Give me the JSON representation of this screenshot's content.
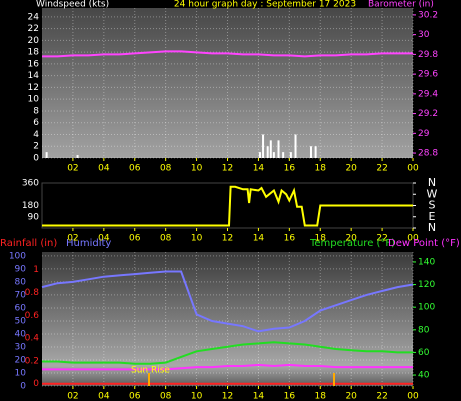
{
  "chart_data": [
    {
      "type": "bar",
      "title": "24 hour graph day : September 17 2023",
      "ylabel": "Windspeed (kts)",
      "y2label": "Barometer (in)",
      "xlim": [
        0,
        24
      ],
      "xticks": [
        {
          "value": 2,
          "label": "02"
        },
        {
          "value": 4,
          "label": "04"
        },
        {
          "value": 6,
          "label": "06"
        },
        {
          "value": 8,
          "label": "08"
        },
        10,
        12,
        14,
        16,
        18,
        20,
        22,
        {
          "value": 24,
          "label": "00"
        }
      ],
      "ylim": [
        0,
        25.5
      ],
      "yticks": [
        0,
        2,
        4,
        6,
        8,
        10,
        12,
        14,
        16,
        18,
        20,
        22,
        24
      ],
      "ycolor": "#ffffff",
      "y2lim": [
        28.75,
        30.27
      ],
      "y2ticks": [
        28.8,
        29,
        29.2,
        29.4,
        29.6,
        29.8,
        30,
        30.2
      ],
      "y2color": "#ff44ff",
      "grid": true,
      "series": [
        {
          "type": "bar",
          "color": "#ffffff",
          "axis": "y",
          "x": [
            0.3,
            2.3,
            14.1,
            14.3,
            14.6,
            14.8,
            15.0,
            15.3,
            15.6,
            16.1,
            16.4,
            17.4,
            17.7
          ],
          "values": [
            1,
            0.5,
            1,
            4,
            2,
            3,
            1,
            3,
            1,
            1,
            4,
            2,
            2
          ]
        },
        {
          "type": "line",
          "color": "#ff44ff",
          "axis": "y2",
          "x": [
            0,
            1,
            2,
            3,
            4,
            5,
            6,
            7,
            8,
            9,
            10,
            11,
            12,
            13,
            14,
            15,
            16,
            17,
            18,
            19,
            20,
            21,
            22,
            23,
            24
          ],
          "values": [
            29.78,
            29.78,
            29.79,
            29.79,
            29.8,
            29.8,
            29.81,
            29.82,
            29.83,
            29.83,
            29.82,
            29.81,
            29.81,
            29.8,
            29.8,
            29.79,
            29.79,
            29.78,
            29.79,
            29.79,
            29.8,
            29.8,
            29.81,
            29.81,
            29.81
          ]
        }
      ]
    },
    {
      "type": "line",
      "xlim": [
        0,
        24
      ],
      "xticks": [
        {
          "value": 2,
          "label": "02"
        },
        {
          "value": 4,
          "label": "04"
        },
        {
          "value": 6,
          "label": "06"
        },
        {
          "value": 8,
          "label": "08"
        },
        10,
        12,
        14,
        16,
        18,
        20,
        22,
        {
          "value": 24,
          "label": "00"
        }
      ],
      "ylim": [
        0,
        360
      ],
      "yticks": [
        90,
        180,
        360
      ],
      "ycolor": "#ffffff",
      "y2lim": [
        0,
        360
      ],
      "y2ticks": [
        {
          "value": 0,
          "label": "N"
        },
        {
          "value": 90,
          "label": "E"
        },
        {
          "value": 180,
          "label": "S"
        },
        {
          "value": 270,
          "label": "W"
        },
        {
          "value": 360,
          "label": "N"
        }
      ],
      "y2color": "#ffffff",
      "grid": false,
      "series": [
        {
          "type": "line",
          "color": "#ffff00",
          "axis": "y",
          "x": [
            0,
            12.1,
            12.2,
            12.5,
            13,
            13.3,
            13.4,
            13.5,
            14,
            14.2,
            14.5,
            15,
            15.3,
            15.5,
            15.8,
            16,
            16.3,
            16.5,
            16.8,
            17,
            17.5,
            17.8,
            18,
            24
          ],
          "values": [
            20,
            20,
            330,
            330,
            310,
            310,
            200,
            310,
            300,
            320,
            250,
            300,
            210,
            300,
            270,
            220,
            300,
            170,
            170,
            20,
            20,
            20,
            180,
            180
          ]
        }
      ]
    },
    {
      "type": "line",
      "annotation": "Sun Rise",
      "xlim": [
        0,
        24
      ],
      "xticks": [
        {
          "value": 2,
          "label": "02"
        },
        {
          "value": 4,
          "label": "04"
        },
        {
          "value": 6,
          "label": "06"
        },
        {
          "value": 8,
          "label": "08"
        },
        10,
        12,
        14,
        16,
        18,
        20,
        22,
        {
          "value": 24,
          "label": "00"
        }
      ],
      "ylim": [
        0,
        103
      ],
      "yticks": [
        0,
        10,
        20,
        30,
        40,
        50,
        60,
        70,
        80,
        90,
        100
      ],
      "ycolor": "#7777ff",
      "y2lim": [
        30.3,
        148.8
      ],
      "y2ticks": [
        40,
        60,
        80,
        100,
        120,
        140
      ],
      "y2color": "#33ff33",
      "y3lim": [
        -0.02,
        1.155
      ],
      "y3ticks": [
        0,
        0.2,
        0.4,
        0.6,
        0.8,
        1
      ],
      "y3color": "#ff2222",
      "grid": true,
      "series": [
        {
          "name": "Rainfall (in)",
          "type": "line",
          "color": "#ff2222",
          "axis": "y3",
          "x": [
            0,
            24
          ],
          "values": [
            0,
            0
          ]
        },
        {
          "name": "Humidity",
          "type": "line",
          "color": "#7777ff",
          "axis": "y",
          "x": [
            0,
            1,
            2,
            3,
            4,
            5,
            6,
            7,
            8,
            9,
            10,
            11,
            12,
            13,
            14,
            15,
            16,
            17,
            18,
            19,
            20,
            21,
            22,
            23,
            24
          ],
          "values": [
            76,
            79,
            80,
            82,
            84,
            85,
            86,
            87,
            88,
            88,
            55,
            50,
            48,
            46,
            42,
            44,
            45,
            50,
            58,
            62,
            66,
            70,
            73,
            76,
            78
          ]
        },
        {
          "name": "Temperature (°F)",
          "type": "line",
          "color": "#22dd22",
          "axis": "y2",
          "x": [
            0,
            1,
            2,
            3,
            4,
            5,
            6,
            7,
            8,
            9,
            10,
            11,
            12,
            13,
            14,
            15,
            16,
            17,
            18,
            19,
            20,
            21,
            22,
            23,
            24
          ],
          "values": [
            52,
            52,
            51,
            51,
            51,
            51,
            50,
            50,
            51,
            56,
            61,
            63,
            65,
            67,
            68,
            69,
            68,
            67,
            65,
            63,
            62,
            61,
            61,
            60,
            60
          ]
        },
        {
          "name": "Dew Point (°F)",
          "type": "line",
          "color": "#ff33ff",
          "axis": "y2",
          "x": [
            0,
            1,
            2,
            3,
            4,
            5,
            6,
            7,
            8,
            9,
            10,
            11,
            12,
            13,
            14,
            15,
            16,
            17,
            18,
            19,
            20,
            21,
            22,
            23,
            24
          ],
          "values": [
            45,
            45,
            45,
            45,
            45,
            45,
            45,
            45,
            45,
            46,
            47,
            47,
            48,
            48,
            49,
            48,
            49,
            48,
            48,
            47,
            47,
            47,
            47,
            47,
            47
          ]
        }
      ]
    }
  ]
}
